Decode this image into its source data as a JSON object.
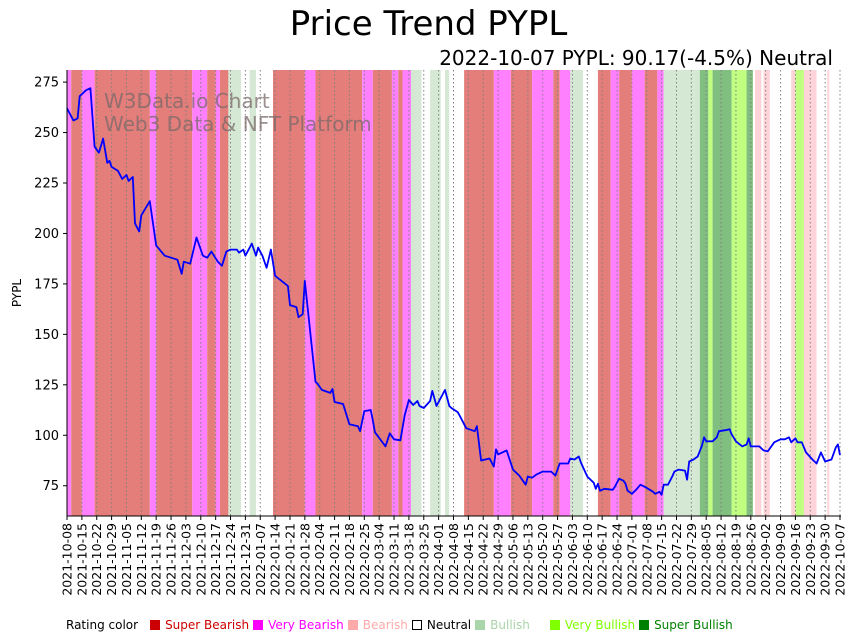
{
  "chart_data": {
    "type": "line",
    "title": "Price Trend PYPL",
    "subtitle": "2022-10-07 PYPL: 90.17(-4.5%) Neutral",
    "xlabel": "",
    "ylabel": "PYPL",
    "ylim": [
      60,
      281
    ],
    "xlim": [
      "2021-10-08",
      "2022-10-07"
    ],
    "yticks": [
      75,
      100,
      125,
      150,
      175,
      200,
      225,
      250,
      275
    ],
    "xticks": [
      "2021-10-08",
      "2021-10-15",
      "2021-10-22",
      "2021-10-29",
      "2021-11-05",
      "2021-11-12",
      "2021-11-19",
      "2021-11-26",
      "2021-12-03",
      "2021-12-10",
      "2021-12-17",
      "2021-12-24",
      "2021-12-31",
      "2022-01-07",
      "2022-01-14",
      "2022-01-21",
      "2022-01-28",
      "2022-02-04",
      "2022-02-11",
      "2022-02-18",
      "2022-02-25",
      "2022-03-04",
      "2022-03-11",
      "2022-03-18",
      "2022-03-25",
      "2022-04-01",
      "2022-04-08",
      "2022-04-15",
      "2022-04-22",
      "2022-04-29",
      "2022-05-06",
      "2022-05-13",
      "2022-05-20",
      "2022-05-27",
      "2022-06-03",
      "2022-06-10",
      "2022-06-17",
      "2022-06-24",
      "2022-07-01",
      "2022-07-08",
      "2022-07-15",
      "2022-07-22",
      "2022-07-29",
      "2022-08-05",
      "2022-08-12",
      "2022-08-19",
      "2022-08-26",
      "2022-09-02",
      "2022-09-09",
      "2022-09-16",
      "2022-09-23",
      "2022-09-30",
      "2022-10-07"
    ],
    "grid": "vertical dotted at x ticks",
    "watermark": [
      "W3Data.io Chart",
      "Web3 Data & NFT Platform"
    ],
    "series": [
      {
        "name": "PYPL",
        "color": "#0000ff",
        "points": [
          [
            "2021-10-08",
            262
          ],
          [
            "2021-10-11",
            256
          ],
          [
            "2021-10-13",
            257
          ],
          [
            "2021-10-14",
            268
          ],
          [
            "2021-10-17",
            271
          ],
          [
            "2021-10-19",
            272
          ],
          [
            "2021-10-21",
            243
          ],
          [
            "2021-10-23",
            240
          ],
          [
            "2021-10-25",
            247
          ],
          [
            "2021-10-27",
            235
          ],
          [
            "2021-10-28",
            236
          ],
          [
            "2021-10-29",
            233
          ],
          [
            "2021-11-01",
            231
          ],
          [
            "2021-11-03",
            227
          ],
          [
            "2021-11-05",
            229
          ],
          [
            "2021-11-06",
            226
          ],
          [
            "2021-11-08",
            228
          ],
          [
            "2021-11-09",
            205
          ],
          [
            "2021-11-11",
            201
          ],
          [
            "2021-11-12",
            209
          ],
          [
            "2021-11-16",
            216
          ],
          [
            "2021-11-19",
            194
          ],
          [
            "2021-11-23",
            189
          ],
          [
            "2021-11-26",
            188
          ],
          [
            "2021-11-29",
            187
          ],
          [
            "2021-12-01",
            180
          ],
          [
            "2021-12-02",
            186
          ],
          [
            "2021-12-05",
            185
          ],
          [
            "2021-12-08",
            198
          ],
          [
            "2021-12-11",
            189
          ],
          [
            "2021-12-13",
            188
          ],
          [
            "2021-12-15",
            191
          ],
          [
            "2021-12-18",
            186
          ],
          [
            "2021-12-20",
            184
          ],
          [
            "2021-12-22",
            191
          ],
          [
            "2021-12-24",
            192
          ],
          [
            "2021-12-27",
            192
          ],
          [
            "2021-12-28",
            190.5
          ],
          [
            "2021-12-30",
            192
          ],
          [
            "2021-12-31",
            189
          ],
          [
            "2022-01-03",
            195
          ],
          [
            "2022-01-05",
            189
          ],
          [
            "2022-01-06",
            193
          ],
          [
            "2022-01-08",
            189
          ],
          [
            "2022-01-10",
            183
          ],
          [
            "2022-01-12",
            192
          ],
          [
            "2022-01-14",
            179
          ],
          [
            "2022-01-20",
            174
          ],
          [
            "2022-01-21",
            164.5
          ],
          [
            "2022-01-24",
            163.5
          ],
          [
            "2022-01-25",
            158.5
          ],
          [
            "2022-01-27",
            160
          ],
          [
            "2022-01-28",
            176.5
          ],
          [
            "2022-02-02",
            126.5
          ],
          [
            "2022-02-03",
            125.5
          ],
          [
            "2022-02-05",
            122.5
          ],
          [
            "2022-02-09",
            121
          ],
          [
            "2022-02-10",
            123
          ],
          [
            "2022-02-11",
            116.5
          ],
          [
            "2022-02-15",
            115.5
          ],
          [
            "2022-02-18",
            105.5
          ],
          [
            "2022-02-22",
            104.5
          ],
          [
            "2022-02-23",
            102
          ],
          [
            "2022-02-25",
            112
          ],
          [
            "2022-02-28",
            112.5
          ],
          [
            "2022-03-01",
            107.5
          ],
          [
            "2022-03-02",
            101.5
          ],
          [
            "2022-03-07",
            94.5
          ],
          [
            "2022-03-09",
            101
          ],
          [
            "2022-03-11",
            98
          ],
          [
            "2022-03-14",
            97.5
          ],
          [
            "2022-03-16",
            110
          ],
          [
            "2022-03-18",
            117.5
          ],
          [
            "2022-03-20",
            115
          ],
          [
            "2022-03-22",
            117
          ],
          [
            "2022-03-23",
            114.5
          ],
          [
            "2022-03-25",
            113.5
          ],
          [
            "2022-03-28",
            117
          ],
          [
            "2022-03-29",
            122
          ],
          [
            "2022-03-31",
            114.5
          ],
          [
            "2022-04-04",
            122.5
          ],
          [
            "2022-04-06",
            114.5
          ],
          [
            "2022-04-07",
            113.5
          ],
          [
            "2022-04-10",
            111.5
          ],
          [
            "2022-04-11",
            109.5
          ],
          [
            "2022-04-14",
            103.5
          ],
          [
            "2022-04-18",
            102
          ],
          [
            "2022-04-19",
            104.5
          ],
          [
            "2022-04-21",
            87.5
          ],
          [
            "2022-04-25",
            88.5
          ],
          [
            "2022-04-27",
            84.5
          ],
          [
            "2022-04-28",
            93
          ],
          [
            "2022-04-29",
            90.5
          ],
          [
            "2022-05-03",
            92.5
          ],
          [
            "2022-05-06",
            83
          ],
          [
            "2022-05-09",
            80
          ],
          [
            "2022-05-12",
            75.5
          ],
          [
            "2022-05-13",
            79.5
          ],
          [
            "2022-05-15",
            79
          ],
          [
            "2022-05-17",
            80.5
          ],
          [
            "2022-05-20",
            82
          ],
          [
            "2022-05-24",
            82
          ],
          [
            "2022-05-26",
            80
          ],
          [
            "2022-05-28",
            86
          ],
          [
            "2022-06-01",
            86
          ],
          [
            "2022-06-02",
            88.5
          ],
          [
            "2022-06-04",
            88
          ],
          [
            "2022-06-06",
            89.5
          ],
          [
            "2022-06-07",
            86.5
          ],
          [
            "2022-06-10",
            79.5
          ],
          [
            "2022-06-13",
            76.5
          ],
          [
            "2022-06-14",
            73.5
          ],
          [
            "2022-06-15",
            76
          ],
          [
            "2022-06-16",
            72.5
          ],
          [
            "2022-06-18",
            73.5
          ],
          [
            "2022-06-22",
            73
          ],
          [
            "2022-06-23",
            74.5
          ],
          [
            "2022-06-25",
            78.5
          ],
          [
            "2022-06-27",
            77.5
          ],
          [
            "2022-06-28",
            76
          ],
          [
            "2022-06-29",
            72.5
          ],
          [
            "2022-07-01",
            71
          ],
          [
            "2022-07-03",
            73
          ],
          [
            "2022-07-05",
            75.5
          ],
          [
            "2022-07-07",
            74.5
          ],
          [
            "2022-07-11",
            72
          ],
          [
            "2022-07-12",
            71
          ],
          [
            "2022-07-14",
            72
          ],
          [
            "2022-07-15",
            70.5
          ],
          [
            "2022-07-16",
            75.5
          ],
          [
            "2022-07-18",
            75.5
          ],
          [
            "2022-07-20",
            79.5
          ],
          [
            "2022-07-21",
            82
          ],
          [
            "2022-07-23",
            83
          ],
          [
            "2022-07-26",
            82.5
          ],
          [
            "2022-07-27",
            78
          ],
          [
            "2022-07-28",
            87
          ],
          [
            "2022-07-30",
            88
          ],
          [
            "2022-08-01",
            89.5
          ],
          [
            "2022-08-03",
            95
          ],
          [
            "2022-08-04",
            99
          ],
          [
            "2022-08-05",
            97
          ],
          [
            "2022-08-08",
            97
          ],
          [
            "2022-08-10",
            99
          ],
          [
            "2022-08-11",
            102
          ],
          [
            "2022-08-14",
            102.5
          ],
          [
            "2022-08-16",
            103
          ],
          [
            "2022-08-17",
            100.5
          ],
          [
            "2022-08-19",
            97
          ],
          [
            "2022-08-22",
            94.5
          ],
          [
            "2022-08-24",
            95.5
          ],
          [
            "2022-08-25",
            98.5
          ],
          [
            "2022-08-26",
            94.5
          ],
          [
            "2022-08-30",
            94.5
          ],
          [
            "2022-09-01",
            92.5
          ],
          [
            "2022-09-03",
            92
          ],
          [
            "2022-09-06",
            96.5
          ],
          [
            "2022-09-09",
            98
          ],
          [
            "2022-09-11",
            98
          ],
          [
            "2022-09-13",
            99
          ],
          [
            "2022-09-14",
            96.5
          ],
          [
            "2022-09-16",
            98.5
          ],
          [
            "2022-09-17",
            96.5
          ],
          [
            "2022-09-19",
            96.5
          ],
          [
            "2022-09-21",
            91.5
          ],
          [
            "2022-09-24",
            88
          ],
          [
            "2022-09-26",
            86
          ],
          [
            "2022-09-28",
            91.5
          ],
          [
            "2022-09-30",
            87
          ],
          [
            "2022-10-03",
            88
          ],
          [
            "2022-10-05",
            94
          ],
          [
            "2022-10-06",
            95.5
          ],
          [
            "2022-10-07",
            90.17
          ]
        ]
      }
    ],
    "rating_bands": [
      [
        "2021-10-08",
        "2021-10-10",
        "Very Bearish"
      ],
      [
        "2021-10-10",
        "2021-10-15",
        "Super Bearish"
      ],
      [
        "2021-10-15",
        "2021-10-21",
        "Very Bearish"
      ],
      [
        "2021-10-21",
        "2021-11-16",
        "Super Bearish"
      ],
      [
        "2021-11-16",
        "2021-11-19",
        "Very Bearish"
      ],
      [
        "2021-11-19",
        "2021-12-06",
        "Super Bearish"
      ],
      [
        "2021-12-06",
        "2021-12-13",
        "Very Bearish"
      ],
      [
        "2021-12-13",
        "2021-12-17",
        "Super Bearish"
      ],
      [
        "2021-12-17",
        "2021-12-19",
        "Very Bearish"
      ],
      [
        "2021-12-19",
        "2021-12-23",
        "Super Bearish"
      ],
      [
        "2021-12-23",
        "2021-12-29",
        "Bullish"
      ],
      [
        "2021-12-29",
        "2022-01-02",
        "Neutral"
      ],
      [
        "2022-01-02",
        "2022-01-05",
        "Bullish"
      ],
      [
        "2022-01-05",
        "2022-01-13",
        "Neutral"
      ],
      [
        "2022-01-13",
        "2022-01-28",
        "Super Bearish"
      ],
      [
        "2022-01-28",
        "2022-02-02",
        "Very Bearish"
      ],
      [
        "2022-02-02",
        "2022-02-24",
        "Super Bearish"
      ],
      [
        "2022-02-24",
        "2022-03-01",
        "Very Bearish"
      ],
      [
        "2022-03-01",
        "2022-03-10",
        "Super Bearish"
      ],
      [
        "2022-03-10",
        "2022-03-13",
        "Very Bearish"
      ],
      [
        "2022-03-13",
        "2022-03-15",
        "Super Bearish"
      ],
      [
        "2022-03-15",
        "2022-03-19",
        "Very Bearish"
      ],
      [
        "2022-03-19",
        "2022-03-24",
        "Bullish"
      ],
      [
        "2022-03-24",
        "2022-03-28",
        "Neutral"
      ],
      [
        "2022-03-28",
        "2022-04-02",
        "Bullish"
      ],
      [
        "2022-04-02",
        "2022-04-04",
        "Neutral"
      ],
      [
        "2022-04-04",
        "2022-04-06",
        "Bullish"
      ],
      [
        "2022-04-06",
        "2022-04-13",
        "Neutral"
      ],
      [
        "2022-04-13",
        "2022-04-27",
        "Super Bearish"
      ],
      [
        "2022-04-27",
        "2022-05-05",
        "Very Bearish"
      ],
      [
        "2022-05-05",
        "2022-05-15",
        "Super Bearish"
      ],
      [
        "2022-05-15",
        "2022-05-25",
        "Very Bearish"
      ],
      [
        "2022-05-25",
        "2022-05-28",
        "Super Bearish"
      ],
      [
        "2022-05-28",
        "2022-06-02",
        "Very Bearish"
      ],
      [
        "2022-06-02",
        "2022-06-08",
        "Bullish"
      ],
      [
        "2022-06-08",
        "2022-06-15",
        "Neutral"
      ],
      [
        "2022-06-15",
        "2022-06-21",
        "Super Bearish"
      ],
      [
        "2022-06-21",
        "2022-06-25",
        "Very Bearish"
      ],
      [
        "2022-06-25",
        "2022-07-01",
        "Super Bearish"
      ],
      [
        "2022-07-01",
        "2022-07-07",
        "Very Bearish"
      ],
      [
        "2022-07-07",
        "2022-07-13",
        "Super Bearish"
      ],
      [
        "2022-07-13",
        "2022-07-16",
        "Very Bearish"
      ],
      [
        "2022-07-16",
        "2022-08-02",
        "Bullish"
      ],
      [
        "2022-08-02",
        "2022-08-06",
        "Super Bullish"
      ],
      [
        "2022-08-06",
        "2022-08-08",
        "Very Bullish"
      ],
      [
        "2022-08-08",
        "2022-08-17",
        "Super Bullish"
      ],
      [
        "2022-08-17",
        "2022-08-24",
        "Very Bullish"
      ],
      [
        "2022-08-24",
        "2022-08-27",
        "Super Bullish"
      ],
      [
        "2022-08-27",
        "2022-08-28",
        "Neutral"
      ],
      [
        "2022-08-28",
        "2022-08-31",
        "Bearish"
      ],
      [
        "2022-08-31",
        "2022-09-01",
        "Neutral"
      ],
      [
        "2022-09-01",
        "2022-09-04",
        "Bearish"
      ],
      [
        "2022-09-04",
        "2022-09-14",
        "Neutral"
      ],
      [
        "2022-09-14",
        "2022-09-16",
        "Bearish"
      ],
      [
        "2022-09-16",
        "2022-09-20",
        "Very Bullish"
      ],
      [
        "2022-09-20",
        "2022-09-26",
        "Bearish"
      ],
      [
        "2022-09-26",
        "2022-10-01",
        "Neutral"
      ],
      [
        "2022-10-01",
        "2022-10-02",
        "Bearish"
      ],
      [
        "2022-10-02",
        "2022-10-07",
        "Neutral"
      ]
    ],
    "band_colors": {
      "Super Bearish": "#e37e7a",
      "Very Bearish": "#ff80ff",
      "Bearish": "#ffd4d8",
      "Neutral": "#ffffff",
      "Bullish": "#d5e8d4",
      "Very Bullish": "#c0ff80",
      "Super Bullish": "#80bf80"
    },
    "legend": {
      "title": "Rating color",
      "position": "bottom",
      "items": [
        {
          "label": "Super Bearish",
          "swatch": "#cc0000",
          "text_color": "#cc0000"
        },
        {
          "label": "Very Bearish",
          "swatch": "#ff00ff",
          "text_color": "#ff00ff"
        },
        {
          "label": "Bearish",
          "swatch": "#ffaaaa",
          "text_color": "#ffaaaa"
        },
        {
          "label": "Neutral",
          "swatch": "#ffffff",
          "text_color": "#000000"
        },
        {
          "label": "Bullish",
          "swatch": "#aad4aa",
          "text_color": "#aad4aa"
        },
        {
          "label": "Very Bullish",
          "swatch": "#80ff00",
          "text_color": "#80ff00"
        },
        {
          "label": "Super Bullish",
          "swatch": "#008000",
          "text_color": "#008000"
        }
      ]
    }
  }
}
